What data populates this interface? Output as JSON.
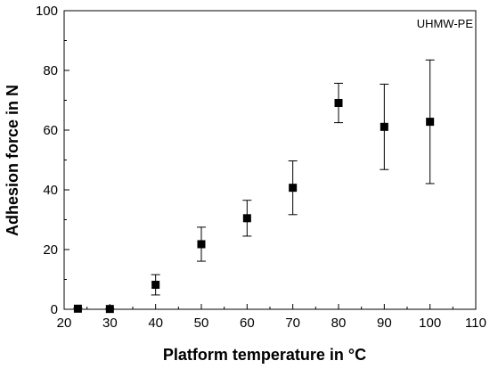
{
  "chart_data": {
    "type": "scatter",
    "xlabel": "Platform temperature in °C",
    "ylabel": "Adhesion force in N",
    "annotation": "UHMW-PE",
    "xlim": [
      20,
      110
    ],
    "ylim": [
      0,
      100
    ],
    "xticks": [
      20,
      30,
      40,
      50,
      60,
      70,
      80,
      90,
      100,
      110
    ],
    "yticks": [
      0,
      20,
      40,
      60,
      80,
      100
    ],
    "grid": false,
    "marker": "square",
    "marker_color": "#000000",
    "series": [
      {
        "points": [
          {
            "x": 23,
            "y": 0.2,
            "err_low": 0.2,
            "err_high": 0.2
          },
          {
            "x": 30,
            "y": 0.1,
            "err_low": 0.1,
            "err_high": 0.1
          },
          {
            "x": 40,
            "y": 8.2,
            "err_low": 3.4,
            "err_high": 3.4
          },
          {
            "x": 50,
            "y": 21.8,
            "err_low": 5.7,
            "err_high": 5.7
          },
          {
            "x": 60,
            "y": 30.5,
            "err_low": 6.0,
            "err_high": 6.0
          },
          {
            "x": 70,
            "y": 40.7,
            "err_low": 9.0,
            "err_high": 9.0
          },
          {
            "x": 80,
            "y": 69.1,
            "err_low": 6.6,
            "err_high": 6.6
          },
          {
            "x": 90,
            "y": 61.1,
            "err_low": 14.3,
            "err_high": 14.3
          },
          {
            "x": 100,
            "y": 62.8,
            "err_low": 20.7,
            "err_high": 20.7
          }
        ]
      }
    ]
  }
}
